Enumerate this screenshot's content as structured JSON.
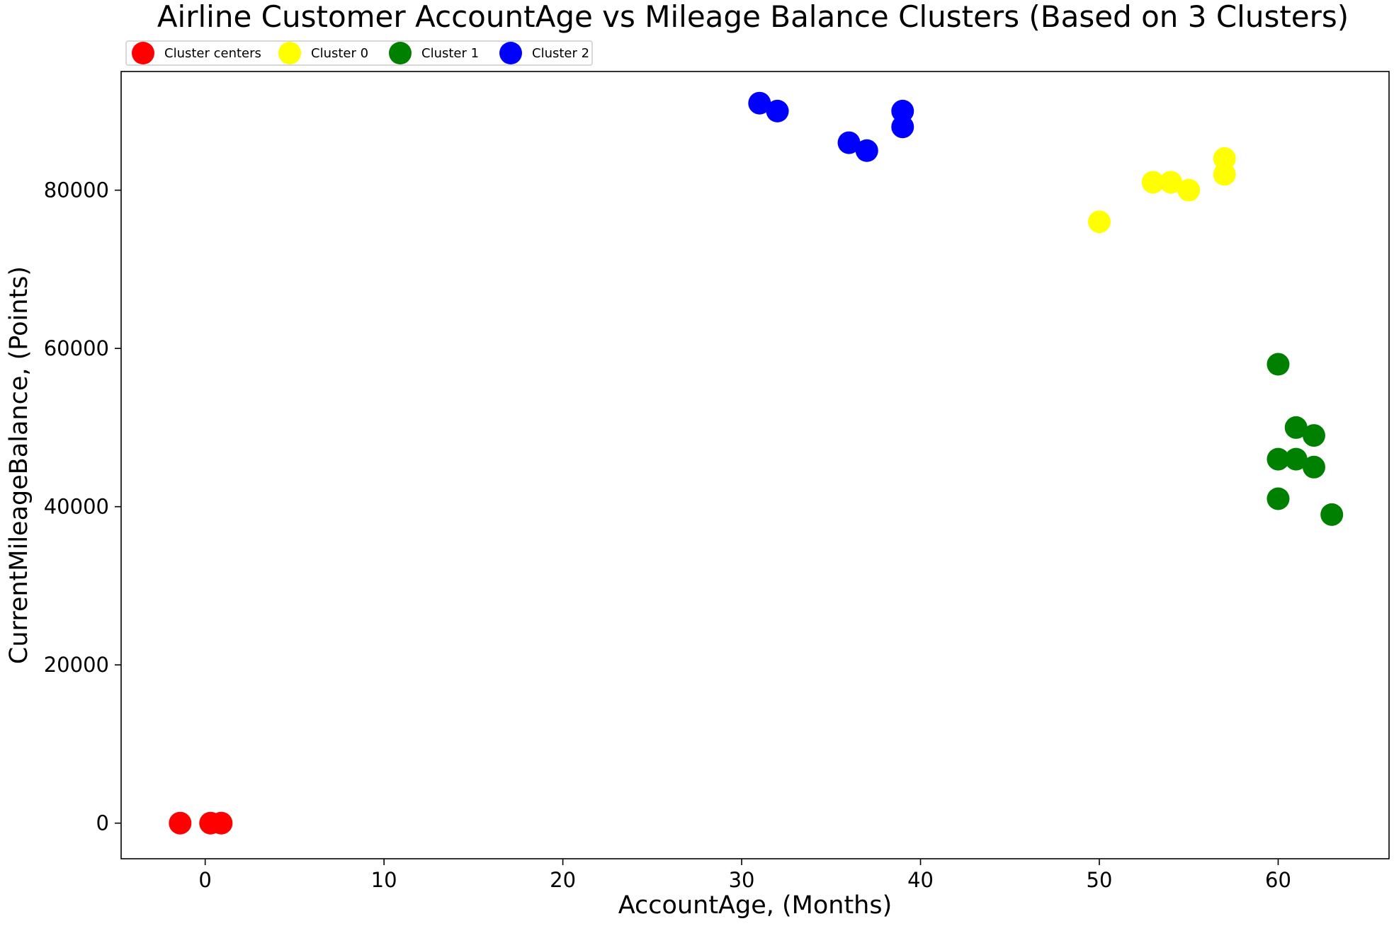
{
  "chart_data": {
    "type": "scatter",
    "title": "Airline Customer AccountAge vs Mileage Balance Clusters (Based on 3 Clusters)",
    "xlabel": "AccountAge, (Months)",
    "ylabel": "CurrentMileageBalance, (Points)",
    "xlim": [
      -4.7,
      66.2
    ],
    "ylim": [
      -4500,
      95000
    ],
    "xticks": [
      0,
      10,
      20,
      30,
      40,
      50,
      60
    ],
    "yticks": [
      0,
      20000,
      40000,
      60000,
      80000
    ],
    "grid": false,
    "legend_position": "top-left, above plot",
    "series": [
      {
        "name": "Cluster centers",
        "color": "#ff0000",
        "points": [
          [
            -1.4,
            0
          ],
          [
            0.3,
            0
          ],
          [
            0.9,
            0
          ]
        ]
      },
      {
        "name": "Cluster 0",
        "color": "#ffff00",
        "points": [
          [
            50,
            76000
          ],
          [
            53,
            81000
          ],
          [
            54,
            81000
          ],
          [
            55,
            80000
          ],
          [
            57,
            82000
          ],
          [
            57,
            84000
          ]
        ]
      },
      {
        "name": "Cluster 1",
        "color": "#008000",
        "points": [
          [
            60,
            58000
          ],
          [
            60,
            46000
          ],
          [
            60,
            41000
          ],
          [
            61,
            50000
          ],
          [
            61,
            46000
          ],
          [
            62,
            49000
          ],
          [
            62,
            45000
          ],
          [
            63,
            39000
          ]
        ]
      },
      {
        "name": "Cluster 2",
        "color": "#0000ff",
        "points": [
          [
            31,
            91000
          ],
          [
            32,
            90000
          ],
          [
            36,
            86000
          ],
          [
            37,
            85000
          ],
          [
            39,
            90000
          ],
          [
            39,
            88000
          ]
        ]
      }
    ]
  }
}
